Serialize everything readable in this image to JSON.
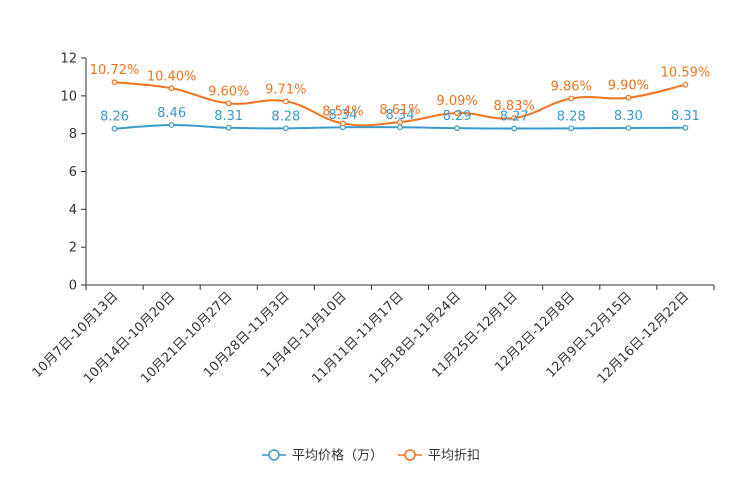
{
  "chart_data": {
    "type": "line",
    "title": "",
    "xlabel": "",
    "ylabel": "",
    "ylim": [
      0,
      12
    ],
    "yticks": [
      "0",
      "2",
      "4",
      "6",
      "8",
      "10",
      "12"
    ],
    "categories": [
      "10月7日-10月13日",
      "10月14日-10月20日",
      "10月21日-10月27日",
      "10月28日-11月3日",
      "11月4日-11月10日",
      "11月11日-11月17日",
      "11月18日-11月24日",
      "11月25日-12月1日",
      "12月2日-12月8日",
      "12月9日-12月15日",
      "12月16日-12月22日"
    ],
    "series": [
      {
        "name": "平均价格（万）",
        "color": "#3a9ac9",
        "values": [
          8.26,
          8.46,
          8.31,
          8.28,
          8.34,
          8.34,
          8.29,
          8.27,
          8.28,
          8.3,
          8.31
        ],
        "labels": [
          "8.26",
          "8.46",
          "8.31",
          "8.28",
          "8.34",
          "8.34",
          "8.29",
          "8.27",
          "8.28",
          "8.30",
          "8.31"
        ]
      },
      {
        "name": "平均折扣",
        "color": "#f07320",
        "values": [
          10.72,
          10.4,
          9.6,
          9.71,
          8.54,
          8.61,
          9.09,
          8.83,
          9.86,
          9.9,
          10.59
        ],
        "labels": [
          "10.72%",
          "10.40%",
          "9.60%",
          "9.71%",
          "8.54%",
          "8.61%",
          "9.09%",
          "8.83%",
          "9.86%",
          "9.90%",
          "10.59%"
        ]
      }
    ],
    "legend_position": "bottom-center",
    "grid": false
  }
}
